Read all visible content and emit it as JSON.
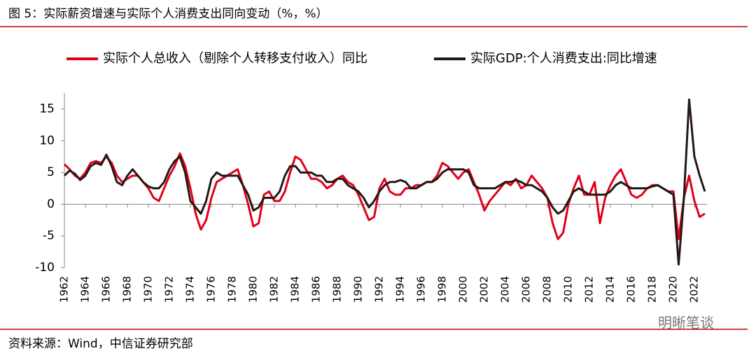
{
  "chart_data": {
    "type": "line",
    "title": "图 5：实际薪资增速与实际个人消费支出同向变动（%，%）",
    "source": "资料来源：Wind，中信证券研究部",
    "watermark": "明晰笔谈",
    "legend": "top",
    "xlim": [
      1962,
      2023.2
    ],
    "xticks": [
      1962,
      1964,
      1966,
      1968,
      1970,
      1972,
      1974,
      1976,
      1978,
      1980,
      1982,
      1984,
      1986,
      1988,
      1990,
      1992,
      1994,
      1996,
      1998,
      2000,
      2002,
      2004,
      2006,
      2008,
      2010,
      2012,
      2014,
      2016,
      2018,
      2020,
      2022
    ],
    "ylim": [
      -10,
      17.5
    ],
    "yticks": [
      -10,
      -5,
      0,
      5,
      10,
      15
    ],
    "x": [
      1962,
      1962.5,
      1963,
      1963.5,
      1964,
      1964.5,
      1965,
      1965.5,
      1966,
      1966.5,
      1967,
      1967.5,
      1968,
      1968.5,
      1969,
      1969.5,
      1970,
      1970.5,
      1971,
      1971.5,
      1972,
      1972.5,
      1973,
      1973.5,
      1974,
      1974.5,
      1975,
      1975.5,
      1976,
      1976.5,
      1977,
      1977.5,
      1978,
      1978.5,
      1979,
      1979.5,
      1980,
      1980.5,
      1981,
      1981.5,
      1982,
      1982.5,
      1983,
      1983.5,
      1984,
      1984.5,
      1985,
      1985.5,
      1986,
      1986.5,
      1987,
      1987.5,
      1988,
      1988.5,
      1989,
      1989.5,
      1990,
      1990.5,
      1991,
      1991.5,
      1992,
      1992.5,
      1993,
      1993.5,
      1994,
      1994.5,
      1995,
      1995.5,
      1996,
      1996.5,
      1997,
      1997.5,
      1998,
      1998.5,
      1999,
      1999.5,
      2000,
      2000.5,
      2001,
      2001.5,
      2002,
      2002.5,
      2003,
      2003.5,
      2004,
      2004.5,
      2005,
      2005.5,
      2006,
      2006.5,
      2007,
      2007.5,
      2008,
      2008.5,
      2009,
      2009.5,
      2010,
      2010.5,
      2011,
      2011.5,
      2012,
      2012.5,
      2013,
      2013.5,
      2014,
      2014.5,
      2015,
      2015.5,
      2016,
      2016.5,
      2017,
      2017.5,
      2018,
      2018.5,
      2019,
      2019.5,
      2020,
      2020.5,
      2021,
      2021.5,
      2022,
      2022.5,
      2023
    ],
    "series": [
      {
        "name": "实际个人总收入（剔除个人转移支付收入）同比",
        "color": "#e0001b",
        "values": [
          6.3,
          5.5,
          4.5,
          4.0,
          5.0,
          6.5,
          6.8,
          6.5,
          7.5,
          6.5,
          4.5,
          3.5,
          4.0,
          4.5,
          4.5,
          3.5,
          2.5,
          1.0,
          0.5,
          2.5,
          4.5,
          6.0,
          8.0,
          6.0,
          2.5,
          -1.5,
          -4.0,
          -2.5,
          1.0,
          3.5,
          4.0,
          4.5,
          5.0,
          5.5,
          3.0,
          0.0,
          -3.5,
          -3.0,
          1.5,
          2.0,
          0.5,
          0.5,
          2.0,
          5.0,
          7.5,
          7.0,
          5.5,
          4.0,
          4.0,
          3.5,
          2.5,
          3.0,
          4.0,
          4.5,
          3.5,
          3.0,
          1.5,
          -0.5,
          -2.5,
          -2.0,
          2.5,
          4.0,
          2.0,
          1.5,
          1.5,
          2.5,
          2.5,
          3.0,
          3.0,
          3.5,
          3.5,
          4.5,
          6.5,
          6.0,
          5.0,
          4.0,
          5.0,
          5.5,
          3.5,
          1.5,
          -1.0,
          0.5,
          1.5,
          2.5,
          3.5,
          3.0,
          4.0,
          2.5,
          3.0,
          4.5,
          3.5,
          2.5,
          1.0,
          -3.0,
          -5.5,
          -4.5,
          0.0,
          2.5,
          4.5,
          1.5,
          1.5,
          3.5,
          -3.0,
          1.0,
          3.0,
          4.5,
          5.5,
          3.5,
          1.5,
          1.0,
          1.5,
          2.5,
          3.0,
          3.0,
          2.5,
          2.0,
          2.0,
          -5.5,
          1.0,
          4.5,
          0.5,
          -2.0,
          -1.5
        ]
      },
      {
        "name": "实际GDP:个人消费支出:同比增速",
        "color": "#231815",
        "values": [
          4.5,
          5.3,
          4.8,
          3.8,
          4.5,
          6.0,
          6.5,
          6.2,
          7.8,
          6.0,
          3.5,
          3.0,
          4.5,
          5.5,
          4.5,
          3.5,
          2.8,
          2.5,
          2.5,
          3.5,
          5.5,
          6.8,
          7.5,
          5.0,
          0.5,
          -0.5,
          -1.5,
          0.5,
          4.0,
          5.0,
          4.5,
          4.5,
          4.5,
          4.5,
          3.0,
          1.5,
          -1.0,
          -0.5,
          1.0,
          1.0,
          1.0,
          2.0,
          4.5,
          6.0,
          6.0,
          5.0,
          5.0,
          5.0,
          4.5,
          4.5,
          3.5,
          3.5,
          4.0,
          4.0,
          3.0,
          2.5,
          2.0,
          1.0,
          -0.5,
          0.5,
          2.0,
          3.0,
          3.5,
          3.5,
          3.8,
          3.5,
          2.5,
          2.5,
          3.0,
          3.5,
          3.5,
          4.0,
          5.0,
          5.5,
          5.5,
          5.5,
          5.5,
          5.0,
          3.0,
          2.5,
          2.5,
          2.5,
          2.5,
          3.0,
          3.5,
          3.5,
          3.8,
          3.5,
          3.0,
          3.0,
          2.5,
          2.0,
          1.0,
          -0.5,
          -1.5,
          -1.0,
          0.5,
          2.0,
          2.5,
          2.0,
          1.5,
          1.5,
          1.5,
          1.5,
          2.0,
          3.0,
          3.5,
          3.0,
          2.5,
          2.5,
          2.5,
          2.5,
          2.8,
          3.0,
          2.5,
          2.0,
          1.5,
          -9.5,
          1.0,
          16.5,
          7.5,
          4.5,
          2.0
        ]
      }
    ]
  }
}
